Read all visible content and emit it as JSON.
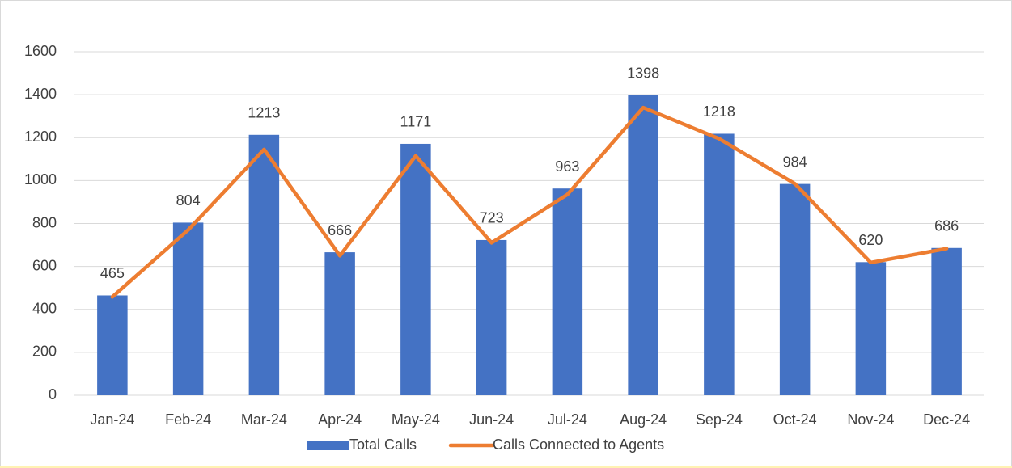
{
  "chart_data": {
    "type": "bar",
    "categories": [
      "Jan-24",
      "Feb-24",
      "Mar-24",
      "Apr-24",
      "May-24",
      "Jun-24",
      "Jul-24",
      "Aug-24",
      "Sep-24",
      "Oct-24",
      "Nov-24",
      "Dec-24"
    ],
    "series": [
      {
        "name": "Total Calls",
        "type": "bar",
        "color": "#4472c4",
        "values": [
          465,
          804,
          1213,
          666,
          1171,
          723,
          963,
          1398,
          1218,
          984,
          620,
          686
        ],
        "data_labels": true
      },
      {
        "name": "Calls Connected to Agents",
        "type": "line",
        "color": "#ed7d31",
        "values": [
          458,
          770,
          1145,
          650,
          1115,
          710,
          935,
          1340,
          1195,
          985,
          618,
          683
        ],
        "data_labels": false
      }
    ],
    "ylim": [
      0,
      1600
    ],
    "yticks": [
      0,
      200,
      400,
      600,
      800,
      1000,
      1200,
      1400,
      1600
    ],
    "grid": true,
    "legend": "bottom"
  }
}
